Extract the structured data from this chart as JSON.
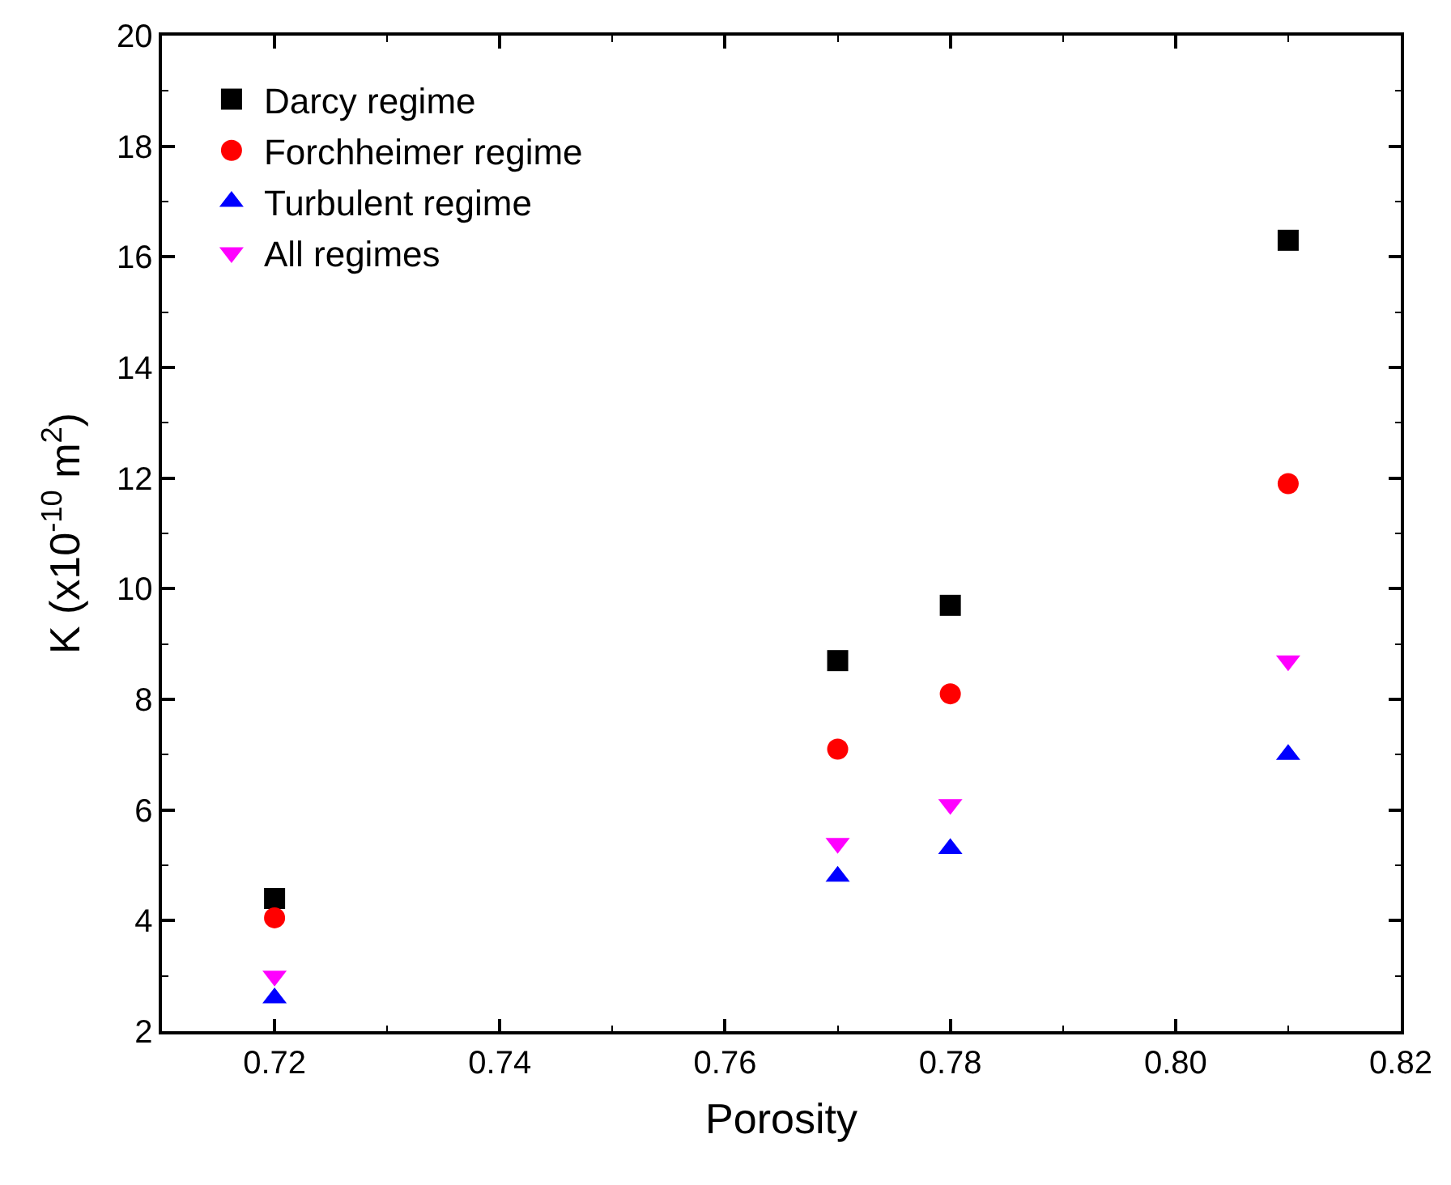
{
  "chart_data": {
    "type": "scatter",
    "xlabel": "Porosity",
    "ylabel": "K (x10$^{-10}$ m$^{2}$)",
    "xlim": [
      0.71,
      0.82
    ],
    "xticks": [
      {
        "value": 0.72,
        "label": "0.72"
      },
      {
        "value": 0.74,
        "label": "0.74"
      },
      {
        "value": 0.76,
        "label": "0.76"
      },
      {
        "value": 0.78,
        "label": "0.78"
      },
      {
        "value": 0.8,
        "label": "0.80"
      },
      {
        "value": 0.82,
        "label": "0.82"
      }
    ],
    "ylim": [
      2,
      20
    ],
    "yticks": [
      2,
      4,
      6,
      8,
      10,
      12,
      14,
      16,
      18,
      20
    ],
    "legend": "top left",
    "x": [
      0.72,
      0.77,
      0.78,
      0.81
    ],
    "series": [
      {
        "name": "Darcy regime",
        "color": "#000000",
        "marker": "square",
        "values": [
          4.4,
          8.7,
          9.7,
          16.3
        ]
      },
      {
        "name": "Forchheimer regime",
        "color": "#ff0000",
        "marker": "circle",
        "values": [
          4.05,
          7.1,
          8.1,
          11.9
        ]
      },
      {
        "name": "Turbulent regime",
        "color": "#0000ff",
        "marker": "triangle",
        "values": [
          2.6,
          4.8,
          5.3,
          7.0
        ]
      },
      {
        "name": "All regimes",
        "color": "#ff00ff",
        "marker": "triangle-down",
        "values": [
          3.0,
          5.4,
          6.1,
          8.7
        ]
      }
    ]
  }
}
